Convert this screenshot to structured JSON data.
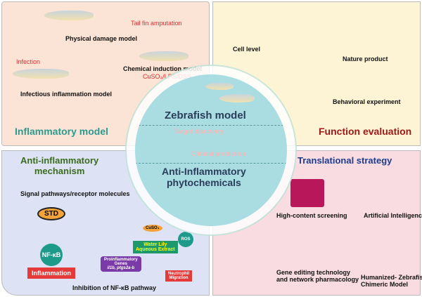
{
  "inflammatory_model": {
    "title": "Inflammatory model",
    "physical": "Physical damage model",
    "tail": "Tail fin amputation",
    "infection": "Infection",
    "infectious": "Infectious inflammation model",
    "chemical": "Chemical induction model",
    "chemicals": "CuSO₄/LPS/DSS"
  },
  "function_evaluation": {
    "title": "Function evaluation",
    "cell": "Cell level",
    "nature": "Nature product",
    "behavior": "Behavioral experiment"
  },
  "mechanism": {
    "title_1": "Anti-inflammatory",
    "title_2": "mechanism",
    "signal": "Signal pathways/receptor molecules",
    "std": "STD",
    "nfkb": "NF-κB",
    "inflammation": "Inflammation",
    "cuso4": "CuSO₄",
    "water_lily": "Water Lily",
    "extract": "Aqueous Extract",
    "proinflammatory": "Proinflammatory",
    "genes": "Genes",
    "gene_names": "il1b, ptgs2a-b",
    "ros": "ROS",
    "neutrophil": "Neutrophil",
    "migration": "Migration",
    "inhibition": "Inhibition of NF-κB pathway"
  },
  "translational": {
    "title": "Translational strategy",
    "hcs": "High-content screening",
    "ai": "Artificial Intelligence",
    "gene_editing_1": "Gene editing technology",
    "gene_editing_2": "and network pharmacology",
    "humanized_1": "Humanized- Zebrafish",
    "humanized_2": "Chimeric Model"
  },
  "center": {
    "zebrafish": "Zebrafish  model",
    "target": "Target discovery",
    "clinical": "Clinical prediction",
    "anti_1": "Anti-Inflammatory",
    "anti_2": "phytochemicals"
  },
  "colors": {
    "inflammatory": "#2e9a8e",
    "function": "#a01818",
    "mechanism": "#3a6b1e",
    "translational": "#1f3c8a"
  }
}
